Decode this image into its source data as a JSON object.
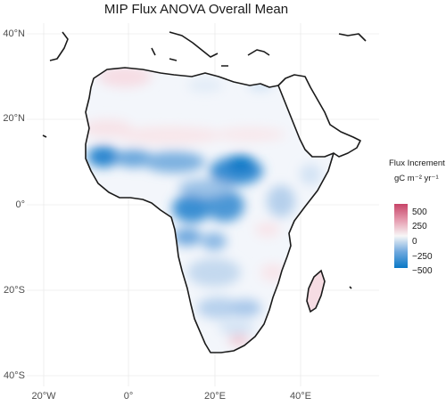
{
  "title": "MIP Flux ANOVA Overall Mean",
  "lat_labels": [
    "40°N",
    "20°N",
    "0°",
    "20°S",
    "40°S"
  ],
  "lon_labels": [
    "20°W",
    "0°",
    "20°E",
    "40°E"
  ],
  "legend": {
    "title": "Flux Increment",
    "unit": "gC m⁻² yr⁻¹",
    "ticks": [
      "500",
      "250",
      "0",
      "−250",
      "−500"
    ],
    "colors": {
      "high": "#c74468",
      "mid": "#f7f7f7",
      "low": "#0a78c6"
    }
  },
  "map": {
    "extent": {
      "lon": [
        -25,
        55
      ],
      "lat": [
        -42,
        42
      ]
    },
    "grid_color": "#ebebeb",
    "coast_color": "#1a1a1a",
    "features": [
      {
        "name": "tropical-north-band",
        "shade": "strong-negative"
      },
      {
        "name": "congo-basin",
        "shade": "strong-negative"
      },
      {
        "name": "sahara",
        "shade": "slight-positive"
      },
      {
        "name": "madagascar",
        "shade": "slight-positive"
      },
      {
        "name": "south-africa-coast",
        "shade": "positive"
      }
    ]
  }
}
